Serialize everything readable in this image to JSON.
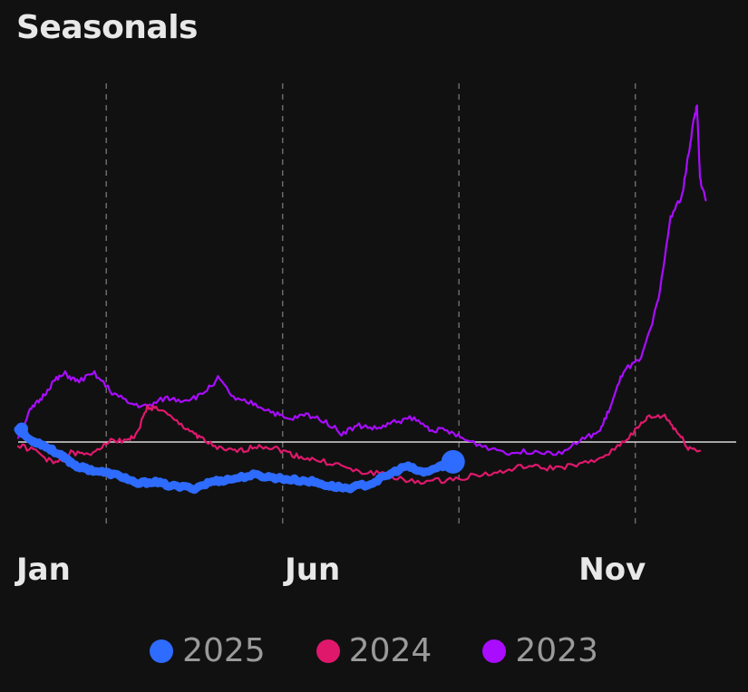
{
  "chart": {
    "title": "Seasonals"
  },
  "chart_data": {
    "type": "line",
    "title": "Seasonals",
    "xlabel": "",
    "ylabel": "",
    "x_unit": "month",
    "xlim": [
      1,
      12.6
    ],
    "ylim": [
      -0.9,
      3.4
    ],
    "x_ticks": [
      {
        "label": "Jan",
        "value": 1
      },
      {
        "label": "Jun",
        "value": 6
      },
      {
        "label": "Nov",
        "value": 11
      }
    ],
    "vertical_grid_dashed": [
      2.5,
      5.5,
      8.5,
      11.5
    ],
    "baseline": 0,
    "series": [
      {
        "name": "2025",
        "color": "#2e6bff",
        "thick": true,
        "end_marker": true,
        "points": [
          [
            1.0,
            0.12
          ],
          [
            1.2,
            0.02
          ],
          [
            1.4,
            -0.02
          ],
          [
            1.6,
            -0.08
          ],
          [
            1.8,
            -0.15
          ],
          [
            2.0,
            -0.22
          ],
          [
            2.2,
            -0.25
          ],
          [
            2.5,
            -0.28
          ],
          [
            2.8,
            -0.32
          ],
          [
            3.0,
            -0.38
          ],
          [
            3.3,
            -0.36
          ],
          [
            3.6,
            -0.4
          ],
          [
            4.0,
            -0.42
          ],
          [
            4.3,
            -0.36
          ],
          [
            4.6,
            -0.34
          ],
          [
            5.0,
            -0.3
          ],
          [
            5.3,
            -0.32
          ],
          [
            5.6,
            -0.34
          ],
          [
            6.0,
            -0.36
          ],
          [
            6.3,
            -0.4
          ],
          [
            6.6,
            -0.42
          ],
          [
            7.0,
            -0.38
          ],
          [
            7.3,
            -0.3
          ],
          [
            7.6,
            -0.22
          ],
          [
            7.9,
            -0.28
          ],
          [
            8.2,
            -0.22
          ],
          [
            8.4,
            -0.18
          ]
        ]
      },
      {
        "name": "2024",
        "color": "#e0186c",
        "thick": false,
        "end_marker": false,
        "points": [
          [
            1.0,
            -0.03
          ],
          [
            1.3,
            -0.08
          ],
          [
            1.6,
            -0.2
          ],
          [
            1.9,
            -0.1
          ],
          [
            2.2,
            -0.12
          ],
          [
            2.5,
            0.0
          ],
          [
            2.8,
            0.02
          ],
          [
            3.0,
            0.05
          ],
          [
            3.2,
            0.32
          ],
          [
            3.4,
            0.3
          ],
          [
            3.7,
            0.18
          ],
          [
            4.0,
            0.08
          ],
          [
            4.2,
            0.0
          ],
          [
            4.5,
            -0.08
          ],
          [
            4.8,
            -0.08
          ],
          [
            5.1,
            -0.03
          ],
          [
            5.4,
            -0.06
          ],
          [
            5.7,
            -0.12
          ],
          [
            6.0,
            -0.16
          ],
          [
            6.4,
            -0.2
          ],
          [
            6.8,
            -0.28
          ],
          [
            7.2,
            -0.28
          ],
          [
            7.6,
            -0.36
          ],
          [
            8.0,
            -0.36
          ],
          [
            8.4,
            -0.34
          ],
          [
            8.8,
            -0.3
          ],
          [
            9.2,
            -0.28
          ],
          [
            9.6,
            -0.22
          ],
          [
            10.0,
            -0.24
          ],
          [
            10.4,
            -0.22
          ],
          [
            10.8,
            -0.18
          ],
          [
            11.2,
            -0.04
          ],
          [
            11.5,
            0.1
          ],
          [
            11.7,
            0.22
          ],
          [
            12.0,
            0.24
          ],
          [
            12.2,
            0.1
          ],
          [
            12.4,
            -0.05
          ],
          [
            12.6,
            -0.08
          ]
        ]
      },
      {
        "name": "2023",
        "color": "#a90cff",
        "thick": false,
        "end_marker": false,
        "points": [
          [
            1.0,
            0.05
          ],
          [
            1.2,
            0.28
          ],
          [
            1.4,
            0.4
          ],
          [
            1.6,
            0.55
          ],
          [
            1.8,
            0.62
          ],
          [
            2.0,
            0.55
          ],
          [
            2.3,
            0.62
          ],
          [
            2.6,
            0.45
          ],
          [
            2.9,
            0.35
          ],
          [
            3.2,
            0.32
          ],
          [
            3.5,
            0.4
          ],
          [
            3.8,
            0.38
          ],
          [
            4.1,
            0.42
          ],
          [
            4.4,
            0.58
          ],
          [
            4.7,
            0.38
          ],
          [
            5.0,
            0.35
          ],
          [
            5.3,
            0.28
          ],
          [
            5.6,
            0.2
          ],
          [
            5.9,
            0.25
          ],
          [
            6.2,
            0.2
          ],
          [
            6.5,
            0.08
          ],
          [
            6.8,
            0.15
          ],
          [
            7.1,
            0.12
          ],
          [
            7.4,
            0.18
          ],
          [
            7.7,
            0.22
          ],
          [
            8.0,
            0.12
          ],
          [
            8.3,
            0.1
          ],
          [
            8.6,
            0.02
          ],
          [
            9.0,
            -0.05
          ],
          [
            9.4,
            -0.1
          ],
          [
            9.8,
            -0.08
          ],
          [
            10.2,
            -0.1
          ],
          [
            10.6,
            0.02
          ],
          [
            10.9,
            0.1
          ],
          [
            11.1,
            0.35
          ],
          [
            11.3,
            0.65
          ],
          [
            11.6,
            0.75
          ],
          [
            11.9,
            1.3
          ],
          [
            12.1,
            2.05
          ],
          [
            12.3,
            2.25
          ],
          [
            12.4,
            2.6
          ],
          [
            12.5,
            2.95
          ],
          [
            12.55,
            3.05
          ],
          [
            12.6,
            2.4
          ],
          [
            12.7,
            2.2
          ]
        ]
      }
    ],
    "legend": {
      "position": "bottom",
      "items": [
        {
          "name": "2025",
          "color": "#2e6bff"
        },
        {
          "name": "2024",
          "color": "#e0186c"
        },
        {
          "name": "2023",
          "color": "#a90cff"
        }
      ]
    }
  }
}
